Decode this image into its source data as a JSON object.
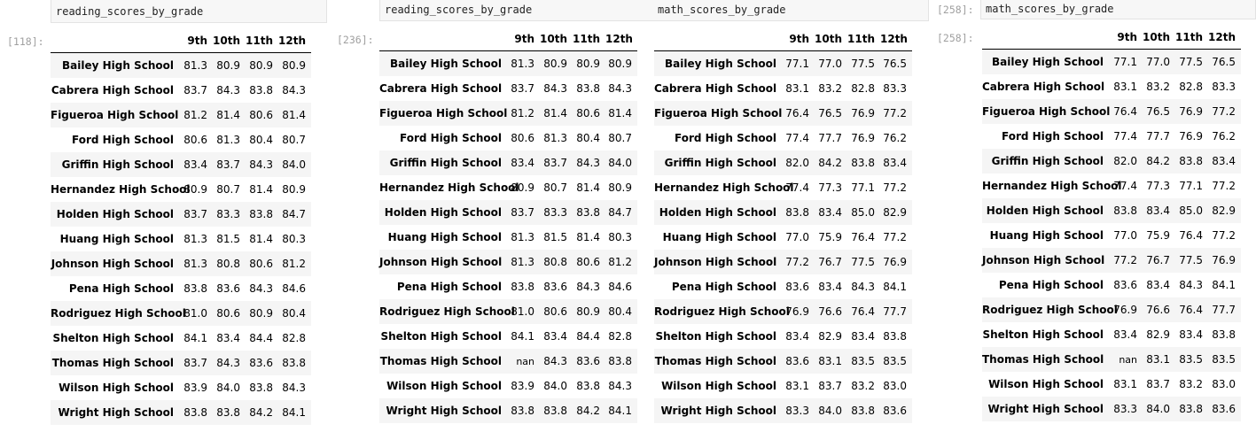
{
  "panels": [
    {
      "prompt": "[118]:",
      "code_lines": [
        "reading_scores_by_grade"
      ],
      "tables": [
        {
          "columns": [
            "9th",
            "10th",
            "11th",
            "12th"
          ],
          "rows": [
            {
              "school": "Bailey High School",
              "values": [
                "81.3",
                "80.9",
                "80.9",
                "80.9"
              ]
            },
            {
              "school": "Cabrera High School",
              "values": [
                "83.7",
                "84.3",
                "83.8",
                "84.3"
              ]
            },
            {
              "school": "Figueroa High School",
              "values": [
                "81.2",
                "81.4",
                "80.6",
                "81.4"
              ]
            },
            {
              "school": "Ford High School",
              "values": [
                "80.6",
                "81.3",
                "80.4",
                "80.7"
              ]
            },
            {
              "school": "Griffin High School",
              "values": [
                "83.4",
                "83.7",
                "84.3",
                "84.0"
              ]
            },
            {
              "school": "Hernandez High School",
              "values": [
                "80.9",
                "80.7",
                "81.4",
                "80.9"
              ]
            },
            {
              "school": "Holden High School",
              "values": [
                "83.7",
                "83.3",
                "83.8",
                "84.7"
              ]
            },
            {
              "school": "Huang High School",
              "values": [
                "81.3",
                "81.5",
                "81.4",
                "80.3"
              ]
            },
            {
              "school": "Johnson High School",
              "values": [
                "81.3",
                "80.8",
                "80.6",
                "81.2"
              ]
            },
            {
              "school": "Pena High School",
              "values": [
                "83.8",
                "83.6",
                "84.3",
                "84.6"
              ]
            },
            {
              "school": "Rodriguez High School",
              "values": [
                "81.0",
                "80.6",
                "80.9",
                "80.4"
              ]
            },
            {
              "school": "Shelton High School",
              "values": [
                "84.1",
                "83.4",
                "84.4",
                "82.8"
              ]
            },
            {
              "school": "Thomas High School",
              "values": [
                "83.7",
                "84.3",
                "83.6",
                "83.8"
              ]
            },
            {
              "school": "Wilson High School",
              "values": [
                "83.9",
                "84.0",
                "83.8",
                "84.3"
              ]
            },
            {
              "school": "Wright High School",
              "values": [
                "83.8",
                "83.8",
                "84.2",
                "84.1"
              ]
            }
          ]
        }
      ]
    },
    {
      "prompt": "[236]:",
      "code_lines": [
        "reading_scores_by_grade",
        "math_scores_by_grade"
      ],
      "tables": [
        {
          "columns": [
            "9th",
            "10th",
            "11th",
            "12th"
          ],
          "rows": [
            {
              "school": "Bailey High School",
              "values": [
                "81.3",
                "80.9",
                "80.9",
                "80.9"
              ]
            },
            {
              "school": "Cabrera High School",
              "values": [
                "83.7",
                "84.3",
                "83.8",
                "84.3"
              ]
            },
            {
              "school": "Figueroa High School",
              "values": [
                "81.2",
                "81.4",
                "80.6",
                "81.4"
              ]
            },
            {
              "school": "Ford High School",
              "values": [
                "80.6",
                "81.3",
                "80.4",
                "80.7"
              ]
            },
            {
              "school": "Griffin High School",
              "values": [
                "83.4",
                "83.7",
                "84.3",
                "84.0"
              ]
            },
            {
              "school": "Hernandez High School",
              "values": [
                "80.9",
                "80.7",
                "81.4",
                "80.9"
              ]
            },
            {
              "school": "Holden High School",
              "values": [
                "83.7",
                "83.3",
                "83.8",
                "84.7"
              ]
            },
            {
              "school": "Huang High School",
              "values": [
                "81.3",
                "81.5",
                "81.4",
                "80.3"
              ]
            },
            {
              "school": "Johnson High School",
              "values": [
                "81.3",
                "80.8",
                "80.6",
                "81.2"
              ]
            },
            {
              "school": "Pena High School",
              "values": [
                "83.8",
                "83.6",
                "84.3",
                "84.6"
              ]
            },
            {
              "school": "Rodriguez High School",
              "values": [
                "81.0",
                "80.6",
                "80.9",
                "80.4"
              ]
            },
            {
              "school": "Shelton High School",
              "values": [
                "84.1",
                "83.4",
                "84.4",
                "82.8"
              ]
            },
            {
              "school": "Thomas High School",
              "values": [
                "nan",
                "84.3",
                "83.6",
                "83.8"
              ]
            },
            {
              "school": "Wilson High School",
              "values": [
                "83.9",
                "84.0",
                "83.8",
                "84.3"
              ]
            },
            {
              "school": "Wright High School",
              "values": [
                "83.8",
                "83.8",
                "84.2",
                "84.1"
              ]
            }
          ]
        },
        {
          "columns": [
            "9th",
            "10th",
            "11th",
            "12th"
          ],
          "rows": [
            {
              "school": "Bailey High School",
              "values": [
                "77.1",
                "77.0",
                "77.5",
                "76.5"
              ]
            },
            {
              "school": "Cabrera High School",
              "values": [
                "83.1",
                "83.2",
                "82.8",
                "83.3"
              ]
            },
            {
              "school": "Figueroa High School",
              "values": [
                "76.4",
                "76.5",
                "76.9",
                "77.2"
              ]
            },
            {
              "school": "Ford High School",
              "values": [
                "77.4",
                "77.7",
                "76.9",
                "76.2"
              ]
            },
            {
              "school": "Griffin High School",
              "values": [
                "82.0",
                "84.2",
                "83.8",
                "83.4"
              ]
            },
            {
              "school": "Hernandez High School",
              "values": [
                "77.4",
                "77.3",
                "77.1",
                "77.2"
              ]
            },
            {
              "school": "Holden High School",
              "values": [
                "83.8",
                "83.4",
                "85.0",
                "82.9"
              ]
            },
            {
              "school": "Huang High School",
              "values": [
                "77.0",
                "75.9",
                "76.4",
                "77.2"
              ]
            },
            {
              "school": "Johnson High School",
              "values": [
                "77.2",
                "76.7",
                "77.5",
                "76.9"
              ]
            },
            {
              "school": "Pena High School",
              "values": [
                "83.6",
                "83.4",
                "84.3",
                "84.1"
              ]
            },
            {
              "school": "Rodriguez High School",
              "values": [
                "76.9",
                "76.6",
                "76.4",
                "77.7"
              ]
            },
            {
              "school": "Shelton High School",
              "values": [
                "83.4",
                "82.9",
                "83.4",
                "83.8"
              ]
            },
            {
              "school": "Thomas High School",
              "values": [
                "83.6",
                "83.1",
                "83.5",
                "83.5"
              ]
            },
            {
              "school": "Wilson High School",
              "values": [
                "83.1",
                "83.7",
                "83.2",
                "83.0"
              ]
            },
            {
              "school": "Wright High School",
              "values": [
                "83.3",
                "84.0",
                "83.8",
                "83.6"
              ]
            }
          ]
        }
      ]
    },
    {
      "prompt": "[258]:",
      "prompt_out": "[258]:",
      "code_lines": [
        "math_scores_by_grade"
      ],
      "tables": [
        {
          "columns": [
            "9th",
            "10th",
            "11th",
            "12th"
          ],
          "rows": [
            {
              "school": "Bailey High School",
              "values": [
                "77.1",
                "77.0",
                "77.5",
                "76.5"
              ]
            },
            {
              "school": "Cabrera High School",
              "values": [
                "83.1",
                "83.2",
                "82.8",
                "83.3"
              ]
            },
            {
              "school": "Figueroa High School",
              "values": [
                "76.4",
                "76.5",
                "76.9",
                "77.2"
              ]
            },
            {
              "school": "Ford High School",
              "values": [
                "77.4",
                "77.7",
                "76.9",
                "76.2"
              ]
            },
            {
              "school": "Griffin High School",
              "values": [
                "82.0",
                "84.2",
                "83.8",
                "83.4"
              ]
            },
            {
              "school": "Hernandez High School",
              "values": [
                "77.4",
                "77.3",
                "77.1",
                "77.2"
              ]
            },
            {
              "school": "Holden High School",
              "values": [
                "83.8",
                "83.4",
                "85.0",
                "82.9"
              ]
            },
            {
              "school": "Huang High School",
              "values": [
                "77.0",
                "75.9",
                "76.4",
                "77.2"
              ]
            },
            {
              "school": "Johnson High School",
              "values": [
                "77.2",
                "76.7",
                "77.5",
                "76.9"
              ]
            },
            {
              "school": "Pena High School",
              "values": [
                "83.6",
                "83.4",
                "84.3",
                "84.1"
              ]
            },
            {
              "school": "Rodriguez High School",
              "values": [
                "76.9",
                "76.6",
                "76.4",
                "77.7"
              ]
            },
            {
              "school": "Shelton High School",
              "values": [
                "83.4",
                "82.9",
                "83.4",
                "83.8"
              ]
            },
            {
              "school": "Thomas High School",
              "values": [
                "nan",
                "83.1",
                "83.5",
                "83.5"
              ]
            },
            {
              "school": "Wilson High School",
              "values": [
                "83.1",
                "83.7",
                "83.2",
                "83.0"
              ]
            },
            {
              "school": "Wright High School",
              "values": [
                "83.3",
                "84.0",
                "83.8",
                "83.6"
              ]
            }
          ]
        }
      ]
    }
  ]
}
